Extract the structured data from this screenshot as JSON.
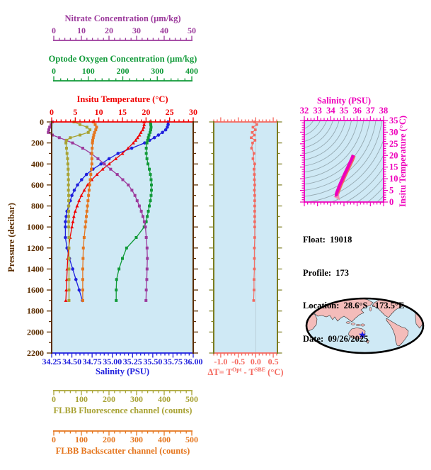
{
  "colors": {
    "panel_bg": "#cfe9f5",
    "pressure_axis": "#5c2e00",
    "temperature": "#f00000",
    "salinity": "#2020dd",
    "oxygen": "#109a38",
    "nitrate": "#9c3a9c",
    "fluorescence": "#a8a233",
    "backscatter": "#e5761e",
    "delta_t": "#f4685e",
    "delta_frame": "#7c7c1e",
    "ts_magenta": "#ee00bb",
    "ts_contour": "#96aab2",
    "info_text": "#000000"
  },
  "float_info": {
    "lines": [
      "Float:  19018",
      "Profile:  173",
      "Location:  28.6°S  -173.5°E",
      "Date:  09/26/2025"
    ]
  },
  "chart_data": [
    {
      "id": "main-profile-plot",
      "type": "line",
      "ylabel": "Pressure (decibar)",
      "ylim": [
        0,
        2200
      ],
      "y_major": 200,
      "y_minor": 100,
      "y_tick_labels": [
        "0",
        "200",
        "400",
        "600",
        "800",
        "1000",
        "1200",
        "1400",
        "1600",
        "1800",
        "2000",
        "2200"
      ],
      "pressure": [
        0,
        25,
        50,
        75,
        100,
        125,
        150,
        175,
        200,
        250,
        300,
        350,
        400,
        450,
        500,
        550,
        600,
        650,
        700,
        750,
        800,
        850,
        900,
        950,
        1000,
        1100,
        1200,
        1300,
        1400,
        1500,
        1600,
        1700
      ],
      "axes": {
        "temperature": {
          "title": "Insitu Temperature (°C)",
          "lim": [
            0,
            30
          ],
          "minor": 1,
          "labels": [
            "0",
            "5",
            "10",
            "15",
            "20",
            "25",
            "30"
          ]
        },
        "salinity": {
          "title": "Salinity (PSU)",
          "lim": [
            34.25,
            36.0
          ],
          "minor": 0.05,
          "labels": [
            "34.25",
            "34.50",
            "34.75",
            "35.00",
            "35.25",
            "35.50",
            "35.75",
            "36.00"
          ]
        },
        "nitrate": {
          "title": "Nitrate Concentration (µm/kg)",
          "lim": [
            0,
            50
          ],
          "minor": 2,
          "labels": [
            "0",
            "10",
            "20",
            "30",
            "40",
            "50"
          ]
        },
        "oxygen": {
          "title": "Optode Oxygen Concentration (µm/kg)",
          "lim": [
            0,
            400
          ],
          "minor": 20,
          "labels": [
            "0",
            "100",
            "200",
            "300",
            "400"
          ]
        },
        "fluorescence": {
          "title": "FLBB Fluorescence channel (counts)",
          "lim": [
            0,
            500
          ],
          "minor": 20,
          "labels": [
            "0",
            "100",
            "200",
            "300",
            "400",
            "500"
          ]
        },
        "backscatter": {
          "title": "FLBB Backscatter channel (counts)",
          "lim": [
            0,
            500
          ],
          "minor": 20,
          "labels": [
            "0",
            "100",
            "200",
            "300",
            "400",
            "500"
          ]
        }
      },
      "series": [
        {
          "name": "salinity",
          "axis": "salinity",
          "marker": "circle",
          "values": [
            35.69,
            35.69,
            35.68,
            35.66,
            35.62,
            35.57,
            35.52,
            35.46,
            35.4,
            35.24,
            35.07,
            34.96,
            34.86,
            34.76,
            34.68,
            34.62,
            34.57,
            34.53,
            34.5,
            34.48,
            34.46,
            34.44,
            34.43,
            34.42,
            34.42,
            34.42,
            34.44,
            34.47,
            34.51,
            34.55,
            34.59,
            34.63
          ]
        },
        {
          "name": "temperature",
          "axis": "temperature",
          "marker": "triangle",
          "values": [
            19.6,
            19.6,
            19.5,
            19.3,
            18.9,
            18.6,
            18.2,
            17.8,
            17.3,
            16.2,
            15.0,
            13.6,
            12.2,
            10.8,
            9.6,
            8.5,
            7.6,
            6.9,
            6.3,
            5.8,
            5.4,
            5.0,
            4.7,
            4.5,
            4.3,
            3.9,
            3.6,
            3.4,
            3.3,
            3.2,
            3.1,
            3.0
          ]
        },
        {
          "name": "oxygen",
          "axis": "oxygen",
          "marker": "square",
          "values": [
            280,
            281,
            282,
            281,
            279,
            276,
            274,
            272,
            270,
            268,
            268,
            270,
            273,
            277,
            280,
            282,
            283,
            283,
            282,
            280,
            277,
            274,
            271,
            268,
            262,
            239,
            211,
            199,
            189,
            182,
            181,
            181
          ]
        },
        {
          "name": "nitrate",
          "axis": "nitrate",
          "marker": "square",
          "values": [
            -0.5,
            -1.0,
            -1.5,
            -1.8,
            -2.0,
            -0.5,
            2.0,
            4.5,
            6.8,
            10.5,
            13.5,
            16.0,
            18.3,
            20.6,
            23.0,
            25.0,
            27.0,
            28.3,
            29.4,
            30.2,
            31.0,
            31.7,
            32.3,
            32.8,
            33.2,
            33.5,
            33.8,
            33.9,
            33.8,
            33.7,
            33.5,
            33.4
          ]
        },
        {
          "name": "fluorescence",
          "axis": "fluorescence",
          "marker": "square",
          "values": [
            73,
            95,
            120,
            131,
            125,
            95,
            60,
            46,
            44,
            46,
            48,
            50,
            51,
            52,
            52,
            53,
            53,
            53,
            54,
            54,
            54,
            54,
            54,
            54,
            54,
            55,
            55,
            55,
            55,
            55,
            55,
            55
          ]
        },
        {
          "name": "backscatter",
          "axis": "backscatter",
          "marker": "square",
          "values": [
            143,
            150,
            155,
            152,
            148,
            145,
            143,
            141,
            140,
            139,
            138,
            138,
            138,
            136,
            134,
            132,
            130,
            128,
            126,
            124,
            122,
            120,
            118,
            116,
            114,
            110,
            107,
            106,
            105,
            105,
            105,
            105
          ]
        }
      ]
    },
    {
      "id": "delta-t-plot",
      "type": "line",
      "xlabel_parts": {
        "pre": "ΔT= T",
        "sup1": "Opt",
        "mid": " - T",
        "sup2": "SBE",
        "post": " (°C)"
      },
      "xlim": [
        -1.2,
        0.62
      ],
      "minor": 0.1,
      "tick_labels": [
        "-1.0",
        "-0.5",
        "0.0",
        "0.5"
      ],
      "marker": "square",
      "values": [
        -0.03,
        0.03,
        -0.08,
        -0.01,
        -0.1,
        -0.04,
        -0.13,
        -0.02,
        -0.09,
        -0.12,
        -0.05,
        -0.08,
        -0.03,
        -0.05,
        -0.04,
        -0.04,
        -0.03,
        -0.04,
        -0.03,
        -0.03,
        -0.03,
        -0.03,
        -0.03,
        -0.03,
        -0.03,
        -0.03,
        -0.04,
        -0.04,
        -0.04,
        -0.05,
        -0.05,
        -0.06
      ]
    },
    {
      "id": "ts-diagram",
      "type": "line",
      "xlabel": "Salinity (PSU)",
      "ylabel": "Insitu Temperature (°C)",
      "xlim": [
        32,
        38
      ],
      "ylim": [
        0,
        35
      ],
      "x_minor": 0.25,
      "y_minor": 1,
      "x_tick_labels": [
        "32",
        "33",
        "34",
        "35",
        "36",
        "37",
        "38"
      ],
      "y_tick_labels": [
        "0",
        "5",
        "10",
        "15",
        "20",
        "25",
        "30",
        "35"
      ],
      "points": [
        [
          34.48,
          2.6
        ],
        [
          34.42,
          3.0
        ],
        [
          34.43,
          3.6
        ],
        [
          34.48,
          4.4
        ],
        [
          34.55,
          5.4
        ],
        [
          34.63,
          6.6
        ],
        [
          34.73,
          8.0
        ],
        [
          34.86,
          9.6
        ],
        [
          35.0,
          11.4
        ],
        [
          35.15,
          13.2
        ],
        [
          35.3,
          15.0
        ],
        [
          35.44,
          16.7
        ],
        [
          35.56,
          18.2
        ],
        [
          35.65,
          19.4
        ],
        [
          35.7,
          20.2
        ]
      ]
    }
  ],
  "map": {
    "ocean": "#cfe9f5",
    "land": "#f4bcba",
    "outline": "#000000",
    "coast": "#303030",
    "marker": "star",
    "marker_color": "#1c1ce0"
  }
}
